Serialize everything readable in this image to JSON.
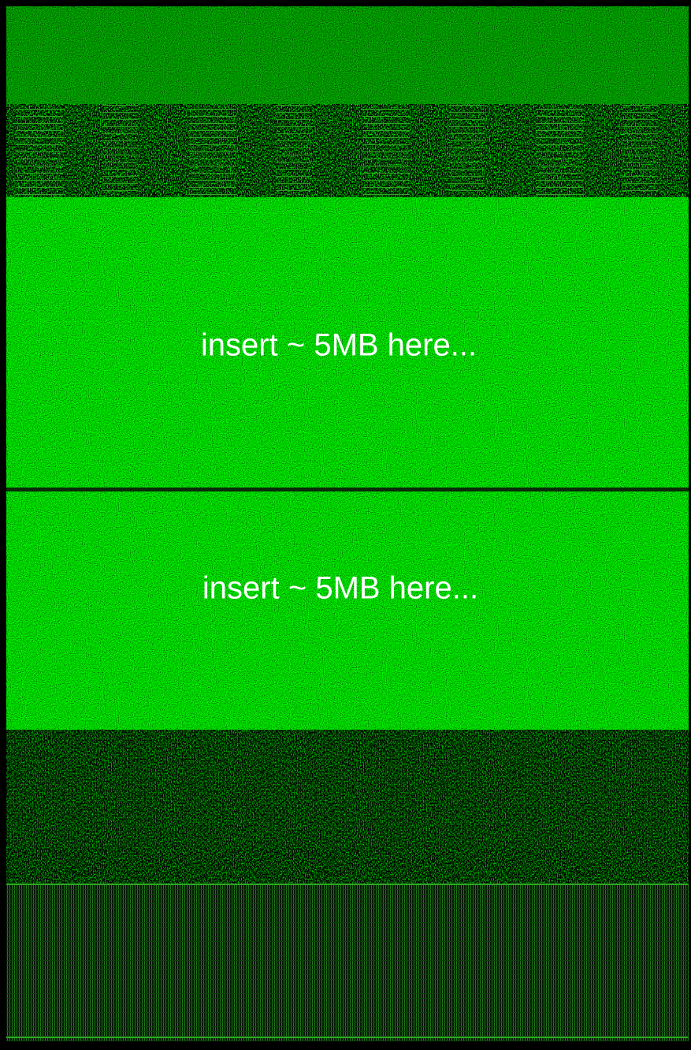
{
  "annotations": [
    "insert ~ 5MB here...",
    "insert ~ 5MB here..."
  ]
}
